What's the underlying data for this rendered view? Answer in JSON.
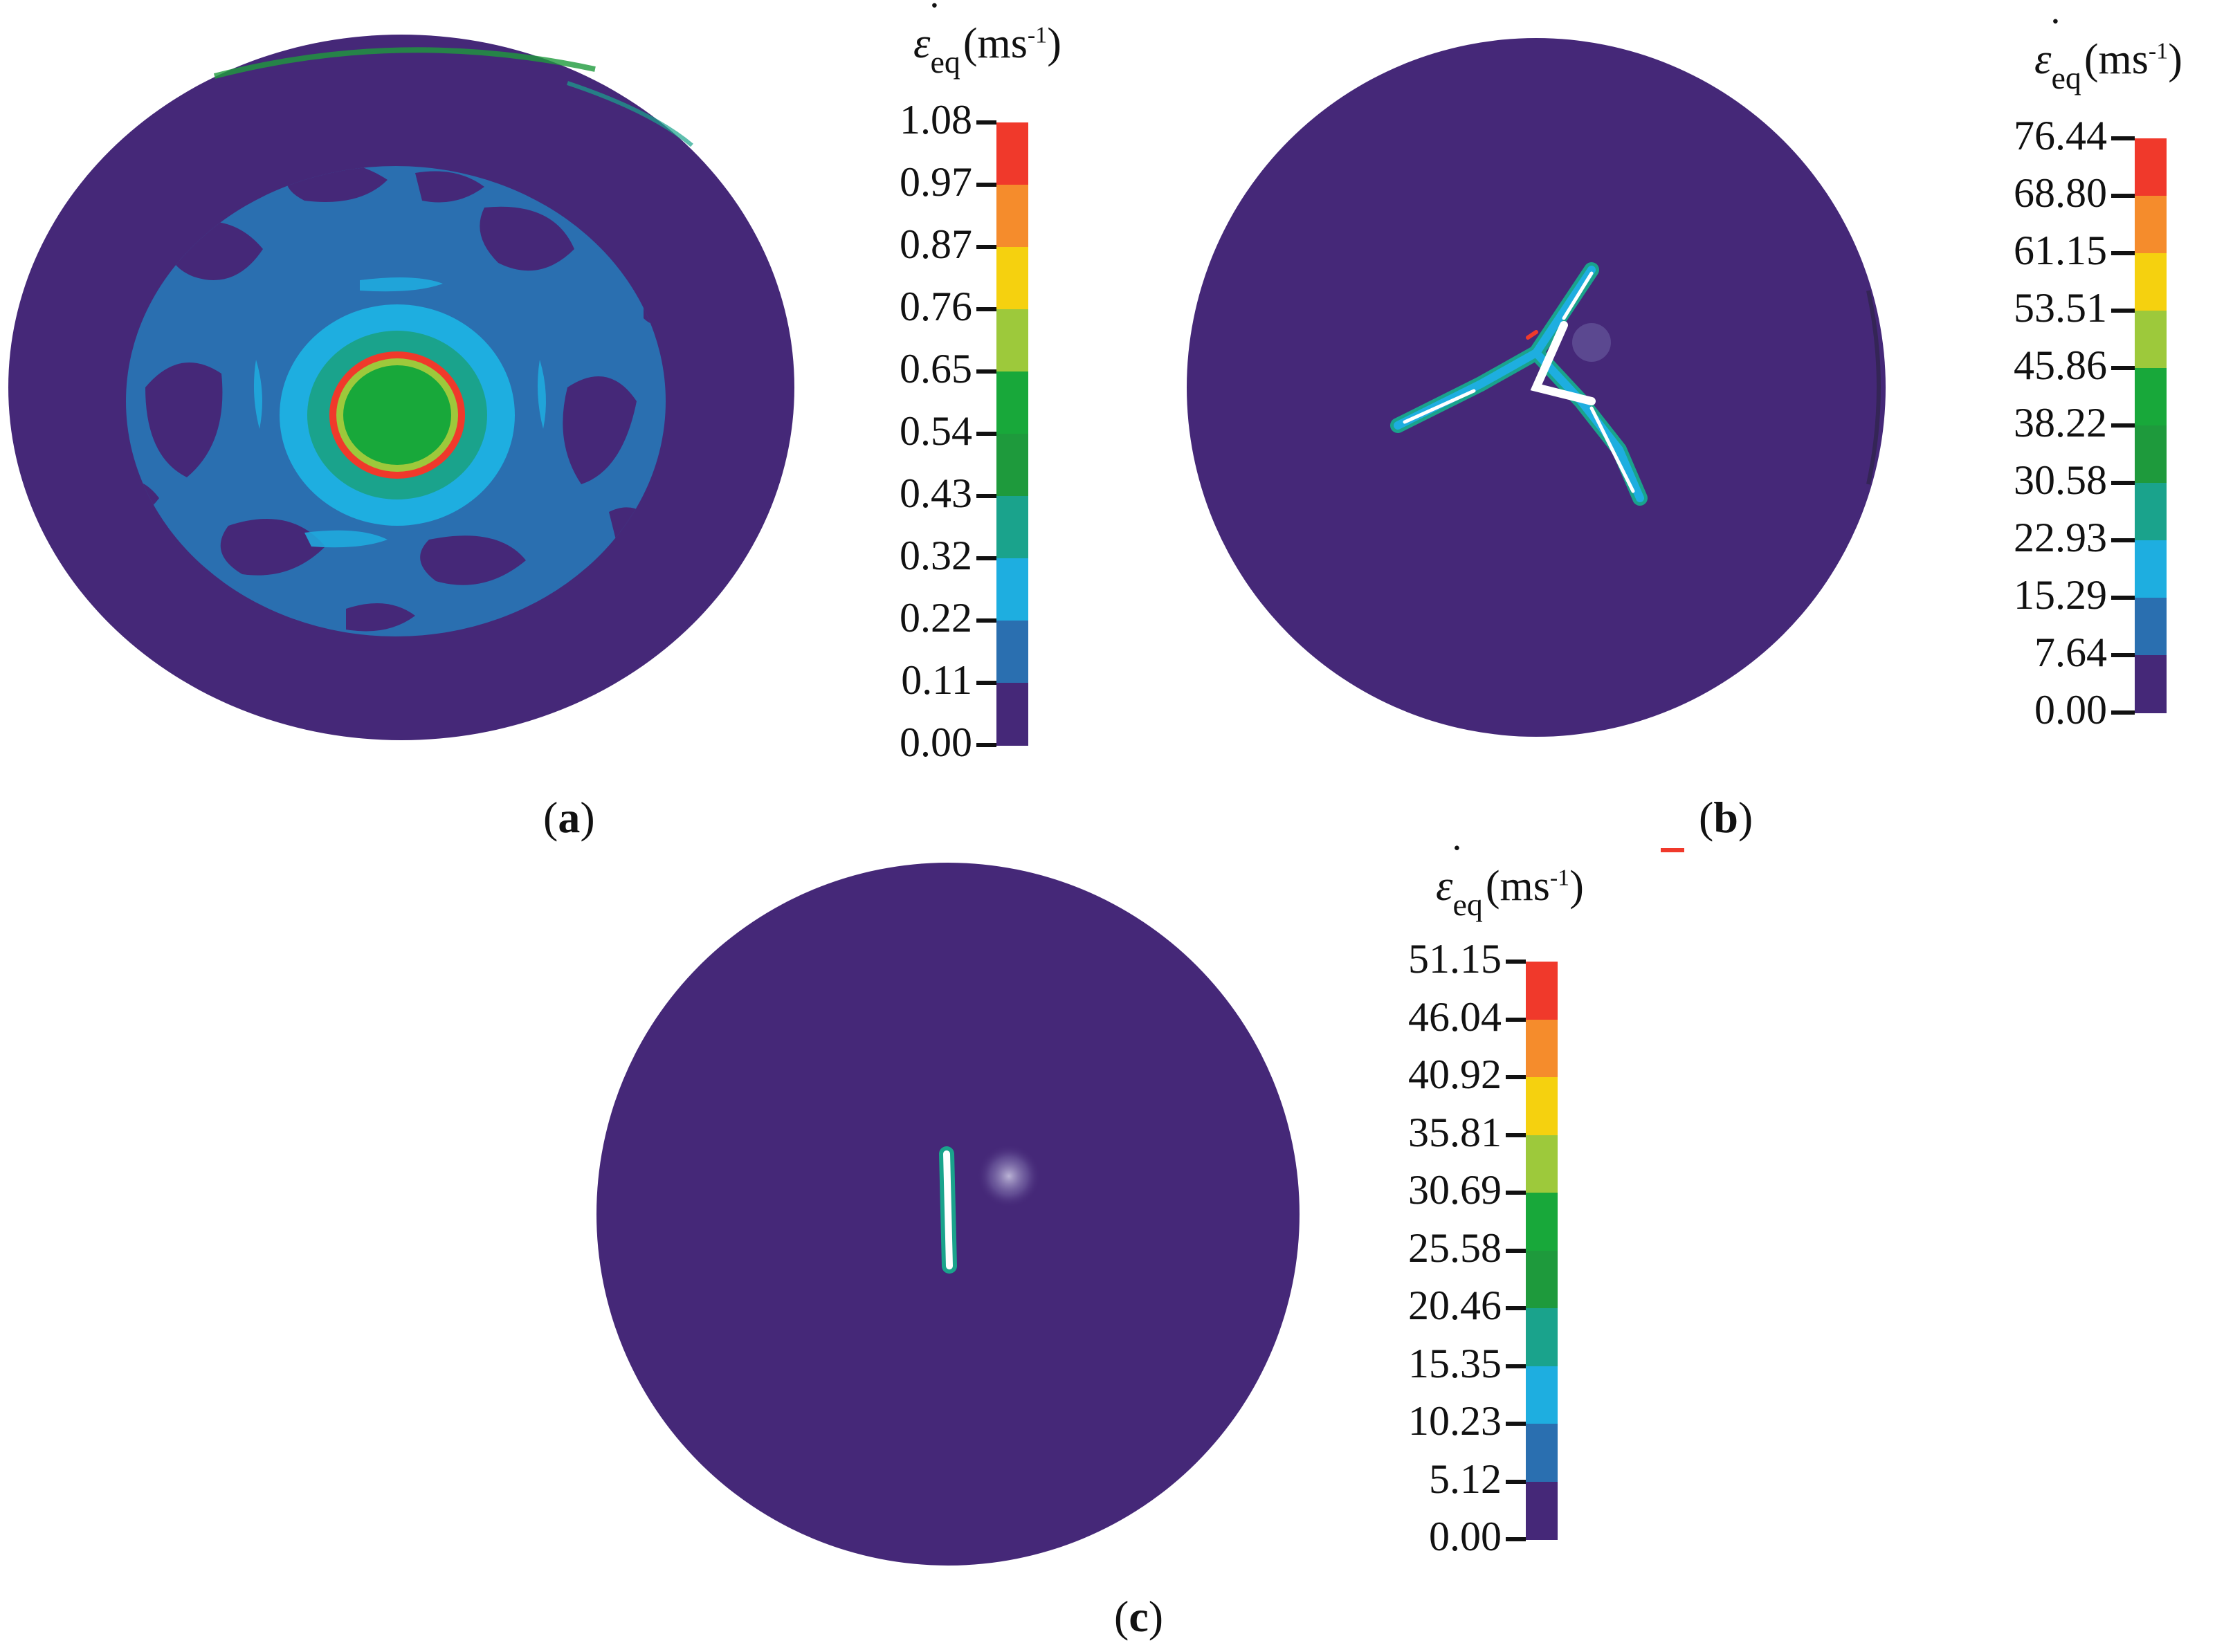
{
  "colormap": [
    "#452878",
    "#2a6fb0",
    "#1eaee0",
    "#1aa38c",
    "#1e9a3c",
    "#18a83a",
    "#9dc93b",
    "#f5d10f",
    "#f58c2c",
    "#f0392b"
  ],
  "background_disc_color": "#452878",
  "panels": [
    {
      "caption": "a",
      "legend": {
        "symbol": "ε",
        "dot": "˙",
        "subscript": "eq",
        "unit": "(ms",
        "unit_exp": "-1",
        "unit_close": ")",
        "ticks": [
          "1.08",
          "0.97",
          "0.87",
          "0.76",
          "0.65",
          "0.54",
          "0.43",
          "0.32",
          "0.22",
          "0.11",
          "0.00"
        ]
      }
    },
    {
      "caption": "b",
      "legend": {
        "symbol": "ε",
        "dot": "˙",
        "subscript": "eq",
        "unit": "(ms",
        "unit_exp": "-1",
        "unit_close": ")",
        "ticks": [
          "76.44",
          "68.80",
          "61.15",
          "53.51",
          "45.86",
          "38.22",
          "30.58",
          "22.93",
          "15.29",
          "7.64",
          "0.00"
        ]
      }
    },
    {
      "caption": "c",
      "legend": {
        "symbol": "ε",
        "dot": "˙",
        "subscript": "eq",
        "unit": "(ms",
        "unit_exp": "-1",
        "unit_close": ")",
        "ticks": [
          "51.15",
          "46.04",
          "40.92",
          "35.81",
          "30.69",
          "25.58",
          "20.46",
          "15.35",
          "10.23",
          "5.12",
          "0.00"
        ]
      }
    }
  ]
}
